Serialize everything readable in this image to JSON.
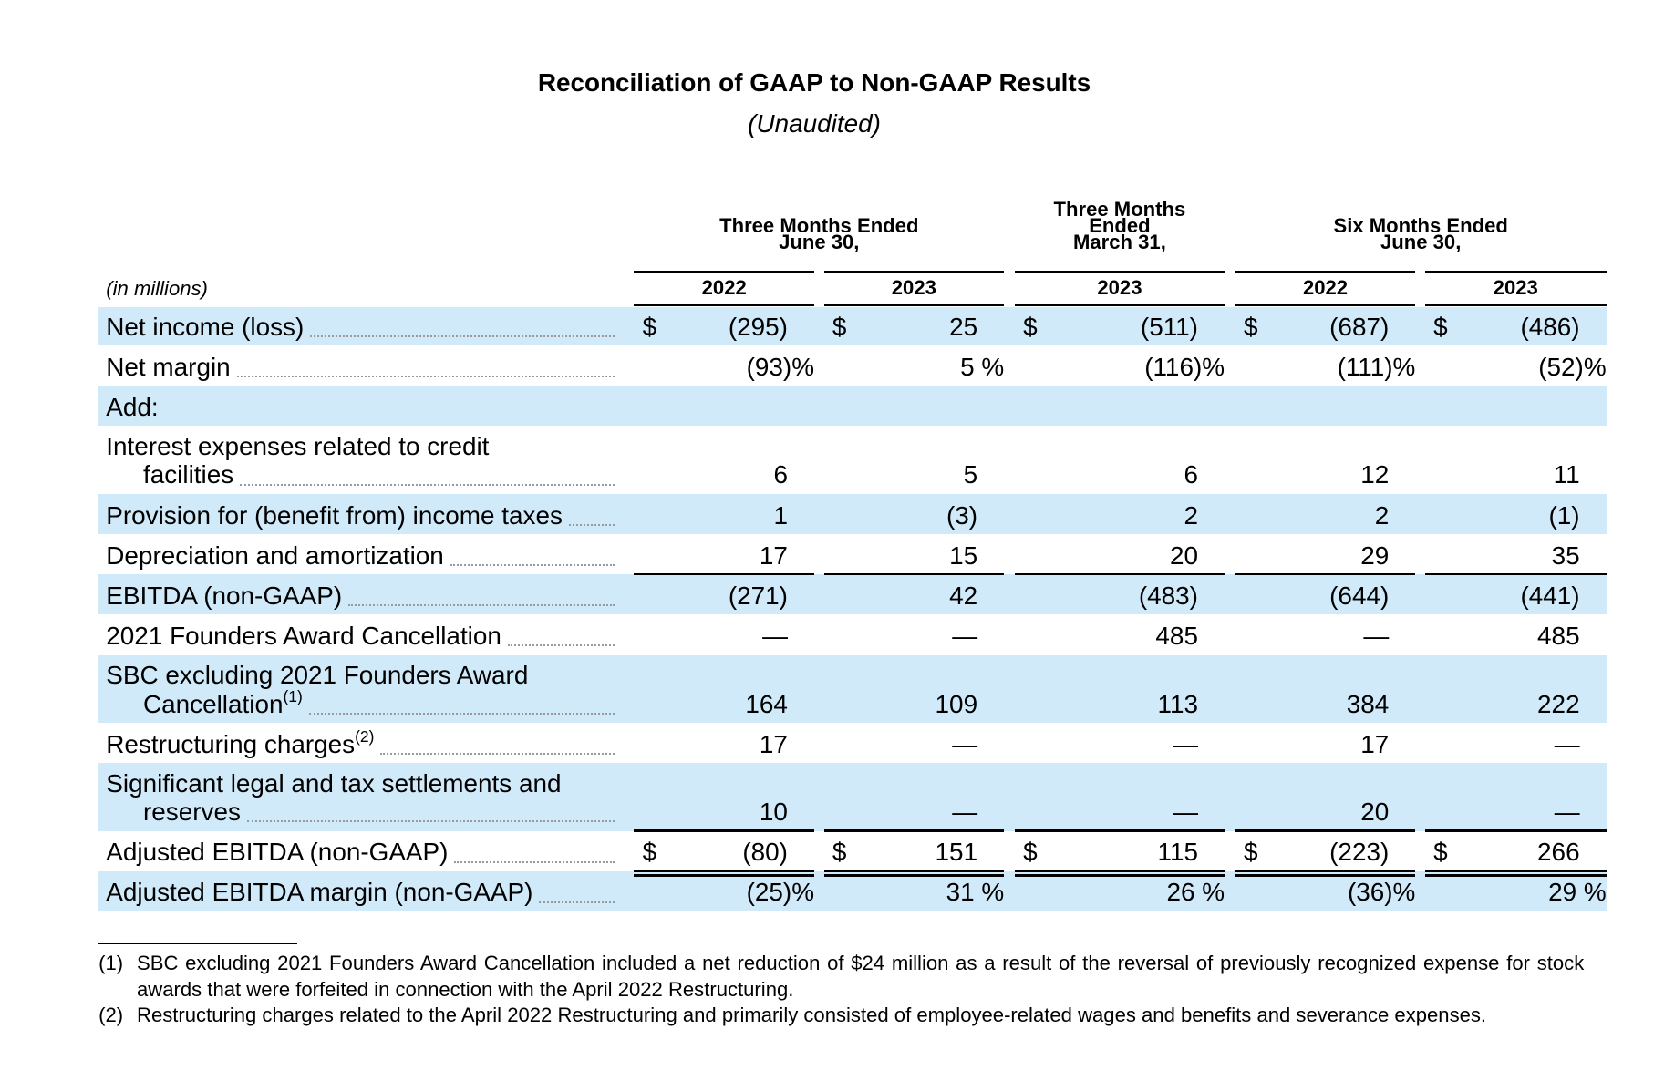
{
  "header": {
    "title": "Reconciliation of GAAP to Non-GAAP Results",
    "subtitle": "(Unaudited)"
  },
  "table": {
    "unit_label": "(in millions)",
    "column_groups": [
      {
        "label": [
          "Three Months Ended",
          "June 30,"
        ],
        "years": [
          "2022",
          "2023"
        ]
      },
      {
        "label": [
          "Three Months",
          "Ended",
          "March 31,"
        ],
        "years": [
          "2023"
        ]
      },
      {
        "label": [
          "Six Months Ended",
          "June 30,"
        ],
        "years": [
          "2022",
          "2023"
        ]
      }
    ],
    "rows": [
      {
        "label": [
          "Net income (loss)"
        ],
        "currency": "$",
        "values": [
          "(295)",
          "25",
          "(511)",
          "(687)",
          "(486)"
        ]
      },
      {
        "label": [
          "Net margin"
        ],
        "values": [
          "(93)%",
          "5 %",
          "(116)%",
          "(111)%",
          "(52)%"
        ]
      },
      {
        "label": [
          "Add:"
        ]
      },
      {
        "label": [
          "Interest expenses related to credit",
          "facilities"
        ],
        "values": [
          "6",
          "5",
          "6",
          "12",
          "11"
        ]
      },
      {
        "label": [
          "Provision for (benefit from) income taxes"
        ],
        "values": [
          "1",
          "(3)",
          "2",
          "2",
          "(1)"
        ]
      },
      {
        "label": [
          "Depreciation and amortization"
        ],
        "values": [
          "17",
          "15",
          "20",
          "29",
          "35"
        ]
      },
      {
        "label": [
          "EBITDA (non-GAAP)"
        ],
        "values": [
          "(271)",
          "42",
          "(483)",
          "(644)",
          "(441)"
        ]
      },
      {
        "label": [
          "2021 Founders Award Cancellation"
        ],
        "values": [
          "—",
          "—",
          "485",
          "—",
          "485"
        ]
      },
      {
        "label": [
          "SBC excluding 2021 Founders Award",
          "Cancellation"
        ],
        "note": "(1)",
        "values": [
          "164",
          "109",
          "113",
          "384",
          "222"
        ]
      },
      {
        "label": [
          "Restructuring charges"
        ],
        "note": "(2)",
        "values": [
          "17",
          "—",
          "—",
          "17",
          "—"
        ]
      },
      {
        "label": [
          "Significant legal and tax settlements and",
          "reserves"
        ],
        "values": [
          "10",
          "—",
          "—",
          "20",
          "—"
        ]
      },
      {
        "label": [
          "Adjusted EBITDA (non-GAAP)"
        ],
        "currency": "$",
        "values": [
          "(80)",
          "151",
          "115",
          "(223)",
          "266"
        ]
      },
      {
        "label": [
          "Adjusted EBITDA margin (non-GAAP)"
        ],
        "values": [
          "(25)%",
          "31 %",
          "26 %",
          "(36)%",
          "29 %"
        ]
      }
    ]
  },
  "footnotes": [
    {
      "marker": "(1)",
      "text": "SBC excluding 2021 Founders Award Cancellation included a net reduction of $24 million as a result of the reversal of previously recognized expense for stock awards that were forfeited in connection with the April 2022 Restructuring."
    },
    {
      "marker": "(2)",
      "text": "Restructuring charges related to the April 2022 Restructuring and primarily consisted of employee-related wages and benefits and severance expenses."
    }
  ]
}
